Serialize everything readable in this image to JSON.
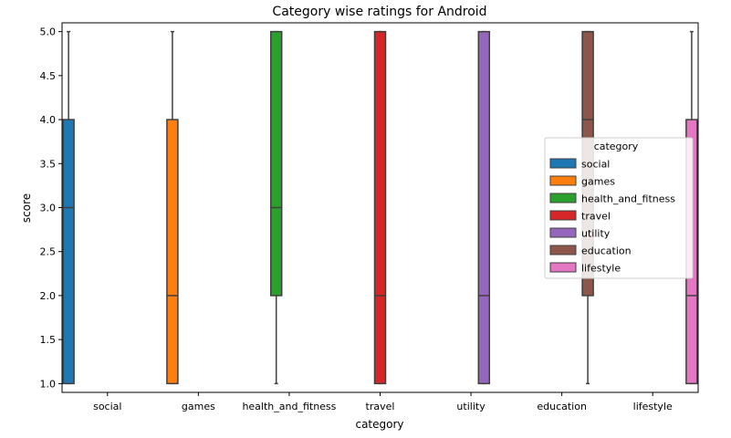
{
  "chart_data": {
    "type": "box",
    "title": "Category wise ratings for Android",
    "xlabel": "category",
    "ylabel": "score",
    "ylim": [
      0.9,
      5.1
    ],
    "yticks": [
      1.0,
      1.5,
      2.0,
      2.5,
      3.0,
      3.5,
      4.0,
      4.5,
      5.0
    ],
    "ytick_labels": [
      "1.0",
      "1.5",
      "2.0",
      "2.5",
      "3.0",
      "3.5",
      "4.0",
      "4.5",
      "5.0"
    ],
    "categories": [
      "social",
      "games",
      "health_and_fitness",
      "travel",
      "utility",
      "education",
      "lifestyle"
    ],
    "legend": {
      "title": "category",
      "placement": "center-right",
      "entries": [
        "social",
        "games",
        "health_and_fitness",
        "travel",
        "utility",
        "education",
        "lifestyle"
      ]
    },
    "series": [
      {
        "name": "social",
        "color": "#1f77b4",
        "min": 1,
        "q1": 1,
        "median": 3,
        "q3": 4,
        "max": 5
      },
      {
        "name": "games",
        "color": "#ff7f0e",
        "min": 1,
        "q1": 1,
        "median": 2,
        "q3": 4,
        "max": 5
      },
      {
        "name": "health_and_fitness",
        "color": "#2ca02c",
        "min": 1,
        "q1": 2,
        "median": 3,
        "q3": 5,
        "max": 5
      },
      {
        "name": "travel",
        "color": "#d62728",
        "min": 1,
        "q1": 1,
        "median": 2,
        "q3": 5,
        "max": 5
      },
      {
        "name": "utility",
        "color": "#9467bd",
        "min": 1,
        "q1": 1,
        "median": 2,
        "q3": 5,
        "max": 5
      },
      {
        "name": "education",
        "color": "#8c564b",
        "min": 1,
        "q1": 2,
        "median": 4,
        "q3": 5,
        "max": 5
      },
      {
        "name": "lifestyle",
        "color": "#e377c2",
        "min": 1,
        "q1": 1,
        "median": 2,
        "q3": 4,
        "max": 5
      }
    ],
    "grid": false
  }
}
